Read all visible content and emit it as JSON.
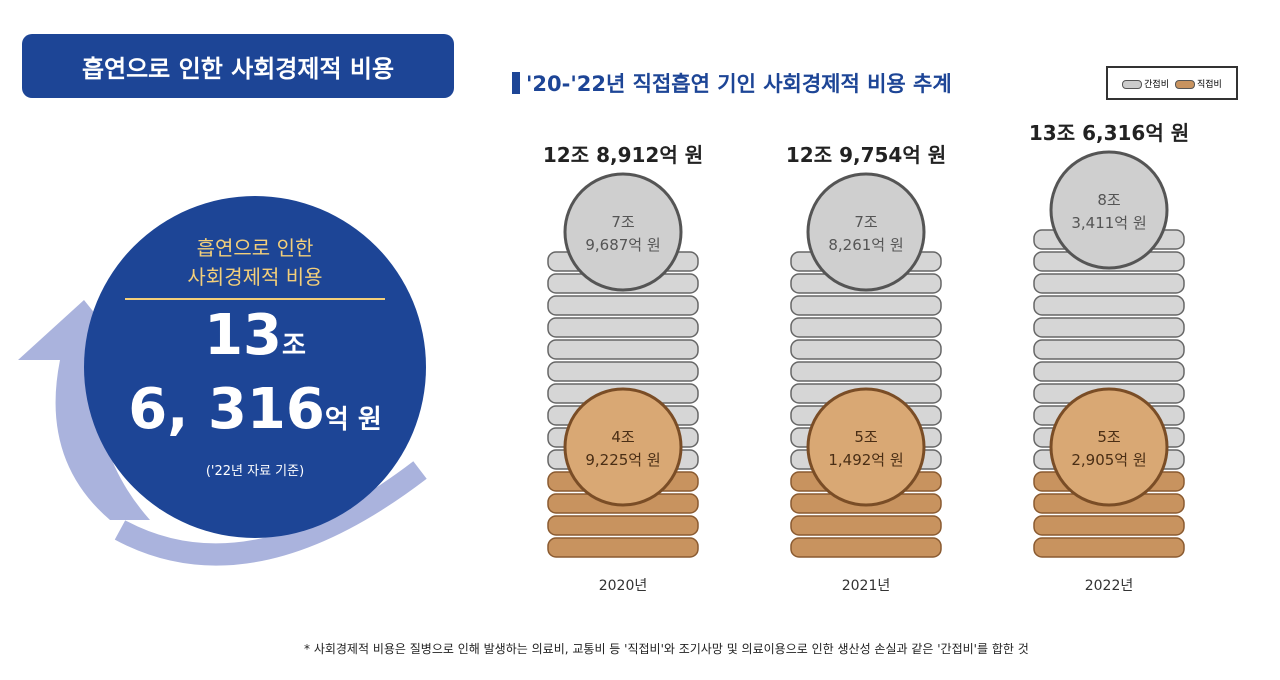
{
  "badge": "흡연으로 인한 사회경제적 비용",
  "summary": {
    "line1": "흡연으로 인한",
    "line2": "사회경제적 비용",
    "num1": "13",
    "unit1": "조",
    "num2": "6, 316",
    "unit2": "억 원",
    "note": "('22년 자료 기준)"
  },
  "chart_data": {
    "type": "bar",
    "title": "'20-'22년 직접흡연 기인 사회경제적 비용 추계",
    "categories": [
      "2020년",
      "2021년",
      "2022년"
    ],
    "totals_label": [
      "12조 8,912억 원",
      "12조 9,754억 원",
      "13조 6,316억 원"
    ],
    "totals": [
      128912,
      129754,
      136316
    ],
    "unit": "억 원",
    "series": [
      {
        "name": "간접비",
        "values": [
          79687,
          78261,
          83411
        ],
        "labels": [
          [
            "7조",
            "9,687억 원"
          ],
          [
            "7조",
            "8,261억 원"
          ],
          [
            "8조",
            "3,411억 원"
          ]
        ],
        "color": "#a9a9a9"
      },
      {
        "name": "직접비",
        "values": [
          49225,
          51492,
          52905
        ],
        "labels": [
          [
            "4조",
            "9,225억 원"
          ],
          [
            "5조",
            "1,492억 원"
          ],
          [
            "5조",
            "2,905억 원"
          ]
        ],
        "color": "#c8935f"
      }
    ],
    "legend": "top-right"
  },
  "footnote": "* 사회경제적 비용은 질병으로 인해 발생하는 의료비, 교통비 등 '직접비'와 조기사망 및 의료이용으로 인한 생산성 손실과 같은 '간접비'를 합한 것"
}
